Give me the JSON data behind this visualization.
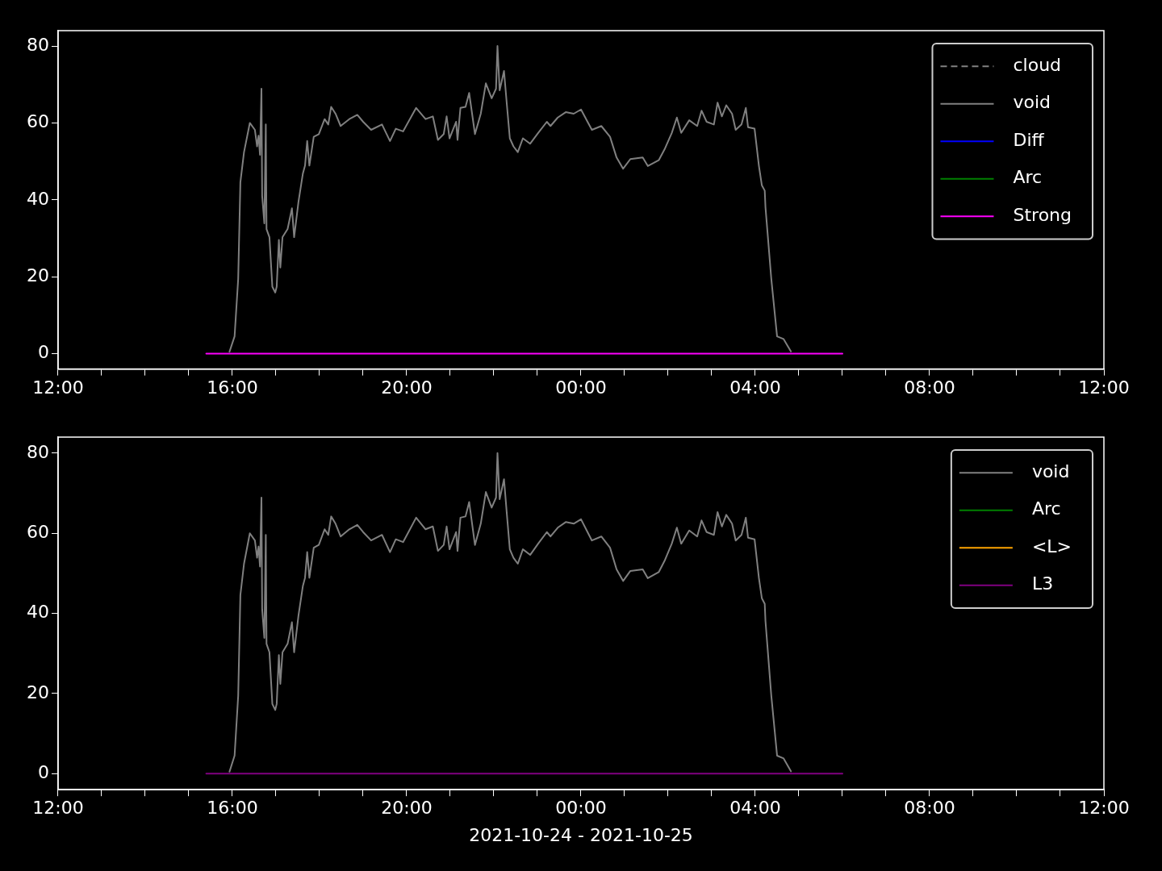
{
  "chart_data": [
    {
      "type": "line",
      "legend": "top right",
      "grid": false,
      "marker": "none",
      "xlim": [
        "2021-10-24T12:00",
        "2021-10-25T12:00"
      ],
      "ylim": [
        -4,
        84
      ],
      "xticks": [
        {
          "value": "2021-10-24T12:00",
          "label": "12:00"
        },
        {
          "value": "2021-10-24T13:00",
          "label": null
        },
        {
          "value": "2021-10-24T14:00",
          "label": null
        },
        {
          "value": "2021-10-24T15:00",
          "label": null
        },
        {
          "value": "2021-10-24T16:00",
          "label": "16:00"
        },
        {
          "value": "2021-10-24T17:00",
          "label": null
        },
        {
          "value": "2021-10-24T18:00",
          "label": null
        },
        {
          "value": "2021-10-24T19:00",
          "label": null
        },
        {
          "value": "2021-10-24T20:00",
          "label": "20:00"
        },
        {
          "value": "2021-10-24T21:00",
          "label": null
        },
        {
          "value": "2021-10-24T22:00",
          "label": null
        },
        {
          "value": "2021-10-24T23:00",
          "label": null
        },
        {
          "value": "2021-10-25T00:00",
          "label": "00:00"
        },
        {
          "value": "2021-10-25T01:00",
          "label": null
        },
        {
          "value": "2021-10-25T02:00",
          "label": null
        },
        {
          "value": "2021-10-25T03:00",
          "label": null
        },
        {
          "value": "2021-10-25T04:00",
          "label": "04:00"
        },
        {
          "value": "2021-10-25T05:00",
          "label": null
        },
        {
          "value": "2021-10-25T06:00",
          "label": null
        },
        {
          "value": "2021-10-25T07:00",
          "label": null
        },
        {
          "value": "2021-10-25T08:00",
          "label": "08:00"
        },
        {
          "value": "2021-10-25T09:00",
          "label": null
        },
        {
          "value": "2021-10-25T10:00",
          "label": null
        },
        {
          "value": "2021-10-25T11:00",
          "label": null
        },
        {
          "value": "2021-10-25T12:00",
          "label": "12:00"
        }
      ],
      "yticks": [
        0,
        20,
        40,
        60,
        80
      ],
      "series": [
        {
          "name": "cloud",
          "color": "#808080",
          "line_style": "dashed"
        },
        {
          "name": "void",
          "color": "#808080",
          "line_style": "solid",
          "x": [
            "2021-10-24T15:56",
            "2021-10-24T16:03",
            "2021-10-24T16:08",
            "2021-10-24T16:11",
            "2021-10-24T16:16",
            "2021-10-24T16:24",
            "2021-10-24T16:31",
            "2021-10-24T16:34",
            "2021-10-24T16:36",
            "2021-10-24T16:38",
            "2021-10-24T16:40",
            "2021-10-24T16:41",
            "2021-10-24T16:44",
            "2021-10-24T16:46",
            "2021-10-24T16:47",
            "2021-10-24T16:51",
            "2021-10-24T16:55",
            "2021-10-24T16:59",
            "2021-10-24T17:01",
            "2021-10-24T17:04",
            "2021-10-24T17:06",
            "2021-10-24T17:09",
            "2021-10-24T17:16",
            "2021-10-24T17:22",
            "2021-10-24T17:25",
            "2021-10-24T17:31",
            "2021-10-24T17:37",
            "2021-10-24T17:40",
            "2021-10-24T17:43",
            "2021-10-24T17:46",
            "2021-10-24T17:52",
            "2021-10-24T17:59",
            "2021-10-24T18:07",
            "2021-10-24T18:12",
            "2021-10-24T18:16",
            "2021-10-24T18:22",
            "2021-10-24T18:29",
            "2021-10-24T18:41",
            "2021-10-24T18:52",
            "2021-10-24T19:00",
            "2021-10-24T19:11",
            "2021-10-24T19:26",
            "2021-10-24T19:37",
            "2021-10-24T19:45",
            "2021-10-24T19:55",
            "2021-10-24T20:13",
            "2021-10-24T20:26",
            "2021-10-24T20:36",
            "2021-10-24T20:43",
            "2021-10-24T20:51",
            "2021-10-24T20:55",
            "2021-10-24T20:59",
            "2021-10-24T21:08",
            "2021-10-24T21:10",
            "2021-10-24T21:14",
            "2021-10-24T21:21",
            "2021-10-24T21:26",
            "2021-10-24T21:34",
            "2021-10-24T21:42",
            "2021-10-24T21:49",
            "2021-10-24T21:57",
            "2021-10-24T22:03",
            "2021-10-24T22:05",
            "2021-10-24T22:08",
            "2021-10-24T22:14",
            "2021-10-24T22:18",
            "2021-10-24T22:22",
            "2021-10-24T22:27",
            "2021-10-24T22:33",
            "2021-10-24T22:40",
            "2021-10-24T22:50",
            "2021-10-24T23:01",
            "2021-10-24T23:13",
            "2021-10-24T23:18",
            "2021-10-24T23:28",
            "2021-10-24T23:39",
            "2021-10-24T23:50",
            "2021-10-25T00:00",
            "2021-10-25T00:09",
            "2021-10-25T00:15",
            "2021-10-25T00:28",
            "2021-10-25T00:40",
            "2021-10-25T00:49",
            "2021-10-25T00:58",
            "2021-10-25T01:08",
            "2021-10-25T01:25",
            "2021-10-25T01:32",
            "2021-10-25T01:47",
            "2021-10-25T01:55",
            "2021-10-25T02:05",
            "2021-10-25T02:12",
            "2021-10-25T02:18",
            "2021-10-25T02:29",
            "2021-10-25T02:40",
            "2021-10-25T02:46",
            "2021-10-25T02:53",
            "2021-10-25T03:03",
            "2021-10-25T03:08",
            "2021-10-25T03:14",
            "2021-10-25T03:20",
            "2021-10-25T03:28",
            "2021-10-25T03:33",
            "2021-10-25T03:41",
            "2021-10-25T03:47",
            "2021-10-25T03:50",
            "2021-10-25T03:59",
            "2021-10-25T04:05",
            "2021-10-25T04:09",
            "2021-10-25T04:13",
            "2021-10-25T04:14",
            "2021-10-25T04:22",
            "2021-10-25T04:30",
            "2021-10-25T04:39",
            "2021-10-25T04:49"
          ],
          "values": [
            0.5,
            4.5,
            19.5,
            44.6,
            52.4,
            60,
            58.2,
            53.9,
            56.7,
            51.7,
            68.9,
            41,
            33.9,
            59.6,
            32.4,
            30.3,
            17.4,
            15.9,
            17.4,
            29.6,
            22.4,
            30.3,
            32.4,
            37.8,
            30.3,
            39.5,
            46.8,
            48.9,
            55.3,
            48.9,
            56.4,
            57.1,
            61,
            59.6,
            64.2,
            62.4,
            59.2,
            61,
            62.1,
            60.3,
            58.2,
            59.6,
            55.3,
            58.5,
            57.8,
            63.9,
            61,
            61.7,
            55.6,
            57.1,
            61.7,
            56,
            60.3,
            55.6,
            63.9,
            64.2,
            67.8,
            57.1,
            62.4,
            70.3,
            66.4,
            68.9,
            80,
            68.5,
            73.5,
            64.6,
            56,
            53.9,
            52.4,
            56,
            54.6,
            57.4,
            60.3,
            59.2,
            61.4,
            62.8,
            62.4,
            63.5,
            60.3,
            58.2,
            59.2,
            56.4,
            51,
            48.1,
            50.6,
            51,
            48.8,
            50.3,
            53.1,
            57.4,
            61.4,
            57.4,
            60.7,
            59.2,
            63.2,
            60.3,
            59.6,
            65.3,
            61.7,
            64.6,
            62.4,
            58.2,
            59.6,
            63.9,
            58.9,
            58.5,
            48.8,
            43.8,
            42.4,
            38.1,
            19.5,
            4.5,
            3.8,
            0.6
          ]
        },
        {
          "name": "Diff",
          "color": "#0000ff",
          "line_style": "solid"
        },
        {
          "name": "Arc",
          "color": "#008000",
          "line_style": "solid"
        },
        {
          "name": "Strong",
          "color": "#ff00ff",
          "line_style": "solid",
          "x": [
            "2021-10-24T15:24",
            "2021-10-25T06:00"
          ],
          "values": [
            0,
            0
          ]
        }
      ]
    },
    {
      "type": "line",
      "legend": "top right",
      "grid": false,
      "marker": "none",
      "xlabel": "2021-10-24 - 2021-10-25",
      "xlim": [
        "2021-10-24T12:00",
        "2021-10-25T12:00"
      ],
      "ylim": [
        -4,
        84
      ],
      "xticks": [
        {
          "value": "2021-10-24T12:00",
          "label": "12:00"
        },
        {
          "value": "2021-10-24T13:00",
          "label": null
        },
        {
          "value": "2021-10-24T14:00",
          "label": null
        },
        {
          "value": "2021-10-24T15:00",
          "label": null
        },
        {
          "value": "2021-10-24T16:00",
          "label": "16:00"
        },
        {
          "value": "2021-10-24T17:00",
          "label": null
        },
        {
          "value": "2021-10-24T18:00",
          "label": null
        },
        {
          "value": "2021-10-24T19:00",
          "label": null
        },
        {
          "value": "2021-10-24T20:00",
          "label": "20:00"
        },
        {
          "value": "2021-10-24T21:00",
          "label": null
        },
        {
          "value": "2021-10-24T22:00",
          "label": null
        },
        {
          "value": "2021-10-24T23:00",
          "label": null
        },
        {
          "value": "2021-10-25T00:00",
          "label": "00:00"
        },
        {
          "value": "2021-10-25T01:00",
          "label": null
        },
        {
          "value": "2021-10-25T02:00",
          "label": null
        },
        {
          "value": "2021-10-25T03:00",
          "label": null
        },
        {
          "value": "2021-10-25T04:00",
          "label": "04:00"
        },
        {
          "value": "2021-10-25T05:00",
          "label": null
        },
        {
          "value": "2021-10-25T06:00",
          "label": null
        },
        {
          "value": "2021-10-25T07:00",
          "label": null
        },
        {
          "value": "2021-10-25T08:00",
          "label": "08:00"
        },
        {
          "value": "2021-10-25T09:00",
          "label": null
        },
        {
          "value": "2021-10-25T10:00",
          "label": null
        },
        {
          "value": "2021-10-25T11:00",
          "label": null
        },
        {
          "value": "2021-10-25T12:00",
          "label": "12:00"
        }
      ],
      "yticks": [
        0,
        20,
        40,
        60,
        80
      ],
      "series": [
        {
          "name": "void",
          "color": "#808080",
          "line_style": "solid",
          "x": [
            "2021-10-24T15:56",
            "2021-10-24T16:03",
            "2021-10-24T16:08",
            "2021-10-24T16:11",
            "2021-10-24T16:16",
            "2021-10-24T16:24",
            "2021-10-24T16:31",
            "2021-10-24T16:34",
            "2021-10-24T16:36",
            "2021-10-24T16:38",
            "2021-10-24T16:40",
            "2021-10-24T16:41",
            "2021-10-24T16:44",
            "2021-10-24T16:46",
            "2021-10-24T16:47",
            "2021-10-24T16:51",
            "2021-10-24T16:55",
            "2021-10-24T16:59",
            "2021-10-24T17:01",
            "2021-10-24T17:04",
            "2021-10-24T17:06",
            "2021-10-24T17:09",
            "2021-10-24T17:16",
            "2021-10-24T17:22",
            "2021-10-24T17:25",
            "2021-10-24T17:31",
            "2021-10-24T17:37",
            "2021-10-24T17:40",
            "2021-10-24T17:43",
            "2021-10-24T17:46",
            "2021-10-24T17:52",
            "2021-10-24T17:59",
            "2021-10-24T18:07",
            "2021-10-24T18:12",
            "2021-10-24T18:16",
            "2021-10-24T18:22",
            "2021-10-24T18:29",
            "2021-10-24T18:41",
            "2021-10-24T18:52",
            "2021-10-24T19:00",
            "2021-10-24T19:11",
            "2021-10-24T19:26",
            "2021-10-24T19:37",
            "2021-10-24T19:45",
            "2021-10-24T19:55",
            "2021-10-24T20:13",
            "2021-10-24T20:26",
            "2021-10-24T20:36",
            "2021-10-24T20:43",
            "2021-10-24T20:51",
            "2021-10-24T20:55",
            "2021-10-24T20:59",
            "2021-10-24T21:08",
            "2021-10-24T21:10",
            "2021-10-24T21:14",
            "2021-10-24T21:21",
            "2021-10-24T21:26",
            "2021-10-24T21:34",
            "2021-10-24T21:42",
            "2021-10-24T21:49",
            "2021-10-24T21:57",
            "2021-10-24T22:03",
            "2021-10-24T22:05",
            "2021-10-24T22:08",
            "2021-10-24T22:14",
            "2021-10-24T22:18",
            "2021-10-24T22:22",
            "2021-10-24T22:27",
            "2021-10-24T22:33",
            "2021-10-24T22:40",
            "2021-10-24T22:50",
            "2021-10-24T23:01",
            "2021-10-24T23:13",
            "2021-10-24T23:18",
            "2021-10-24T23:28",
            "2021-10-24T23:39",
            "2021-10-24T23:50",
            "2021-10-25T00:00",
            "2021-10-25T00:09",
            "2021-10-25T00:15",
            "2021-10-25T00:28",
            "2021-10-25T00:40",
            "2021-10-25T00:49",
            "2021-10-25T00:58",
            "2021-10-25T01:08",
            "2021-10-25T01:25",
            "2021-10-25T01:32",
            "2021-10-25T01:47",
            "2021-10-25T01:55",
            "2021-10-25T02:05",
            "2021-10-25T02:12",
            "2021-10-25T02:18",
            "2021-10-25T02:29",
            "2021-10-25T02:40",
            "2021-10-25T02:46",
            "2021-10-25T02:53",
            "2021-10-25T03:03",
            "2021-10-25T03:08",
            "2021-10-25T03:14",
            "2021-10-25T03:20",
            "2021-10-25T03:28",
            "2021-10-25T03:33",
            "2021-10-25T03:41",
            "2021-10-25T03:47",
            "2021-10-25T03:50",
            "2021-10-25T03:59",
            "2021-10-25T04:05",
            "2021-10-25T04:09",
            "2021-10-25T04:13",
            "2021-10-25T04:14",
            "2021-10-25T04:22",
            "2021-10-25T04:30",
            "2021-10-25T04:39",
            "2021-10-25T04:49"
          ],
          "values": [
            0.5,
            4.5,
            19.5,
            44.6,
            52.4,
            60,
            58.2,
            53.9,
            56.7,
            51.7,
            68.9,
            41,
            33.9,
            59.6,
            32.4,
            30.3,
            17.4,
            15.9,
            17.4,
            29.6,
            22.4,
            30.3,
            32.4,
            37.8,
            30.3,
            39.5,
            46.8,
            48.9,
            55.3,
            48.9,
            56.4,
            57.1,
            61,
            59.6,
            64.2,
            62.4,
            59.2,
            61,
            62.1,
            60.3,
            58.2,
            59.6,
            55.3,
            58.5,
            57.8,
            63.9,
            61,
            61.7,
            55.6,
            57.1,
            61.7,
            56,
            60.3,
            55.6,
            63.9,
            64.2,
            67.8,
            57.1,
            62.4,
            70.3,
            66.4,
            68.9,
            80,
            68.5,
            73.5,
            64.6,
            56,
            53.9,
            52.4,
            56,
            54.6,
            57.4,
            60.3,
            59.2,
            61.4,
            62.8,
            62.4,
            63.5,
            60.3,
            58.2,
            59.2,
            56.4,
            51,
            48.1,
            50.6,
            51,
            48.8,
            50.3,
            53.1,
            57.4,
            61.4,
            57.4,
            60.7,
            59.2,
            63.2,
            60.3,
            59.6,
            65.3,
            61.7,
            64.6,
            62.4,
            58.2,
            59.6,
            63.9,
            58.9,
            58.5,
            48.8,
            43.8,
            42.4,
            38.1,
            19.5,
            4.5,
            3.8,
            0.6
          ]
        },
        {
          "name": "Arc",
          "color": "#008000",
          "line_style": "solid"
        },
        {
          "name": "<L>",
          "color": "#ffa500",
          "line_style": "solid"
        },
        {
          "name": "L3",
          "color": "#800080",
          "line_style": "solid",
          "x": [
            "2021-10-24T15:24",
            "2021-10-25T06:00"
          ],
          "values": [
            0,
            0
          ]
        }
      ]
    }
  ]
}
